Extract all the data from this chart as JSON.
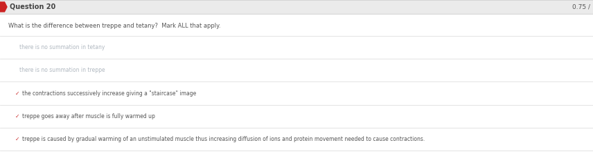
{
  "header_bg": "#ebebeb",
  "header_text": "Question 20",
  "header_text_color": "#444444",
  "header_text_size": 7,
  "score_text": "0.75 /",
  "score_color": "#555555",
  "score_size": 6.5,
  "body_bg": "#ffffff",
  "question_text": "What is the difference between treppe and tetany?  Mark ALL that apply.",
  "question_color": "#555555",
  "question_size": 6.0,
  "header_bar_color": "#cc2222",
  "divider_color": "#d8d8d8",
  "top_border_color": "#cccccc",
  "options": [
    {
      "text": "there is no summation in tetany",
      "selected": false
    },
    {
      "text": "there is no summation in treppe",
      "selected": false
    },
    {
      "text": "the contractions successively increase giving a \"staircase\" image",
      "selected": true
    },
    {
      "text": "treppe goes away after muscle is fully warmed up",
      "selected": true
    },
    {
      "text": "treppe is caused by gradual warming of an unstimulated muscle thus increasing diffusion of ions and protein movement needed to cause contractions.",
      "selected": true
    }
  ],
  "option_text_color_unselected": "#b0b8c0",
  "option_text_color_selected": "#555555",
  "option_text_size": 5.5,
  "checkmark_color": "#cc3333",
  "checkmark_size": 5.5
}
